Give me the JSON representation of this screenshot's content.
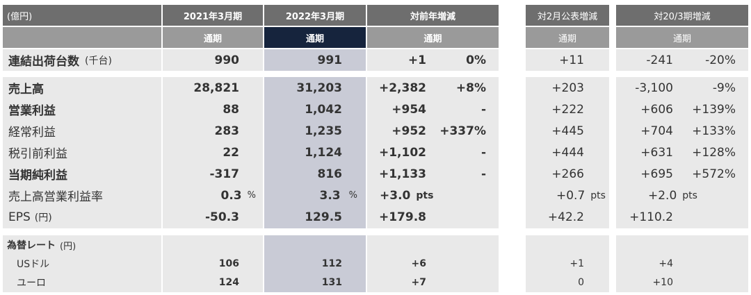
{
  "header": {
    "unit": "(億円)",
    "col_fy2021": "2021年3月期",
    "col_fy2022": "2022年3月期",
    "col_yoy": "対前年増減",
    "col_vs_feb": "対2月公表増減",
    "col_vs_20": "対20/3期増減",
    "sub": "通期"
  },
  "shipments": {
    "label": "連結出荷台数",
    "unit": "(千台)",
    "fy2021": "990",
    "fy2022": "991",
    "yoy": "+1",
    "yoy_pct": "0%",
    "vs_feb": "+11",
    "vs_20": "-241",
    "vs_20_pct": "-20%"
  },
  "rows": [
    {
      "label": "売上高",
      "fy2021": "28,821",
      "fy2022": "31,203",
      "yoy": "+2,382",
      "yoy_pct": "+8%",
      "vs_feb": "+203",
      "vs_20": "-3,100",
      "vs_20_pct": "-9%"
    },
    {
      "label": "営業利益",
      "fy2021": "88",
      "fy2022": "1,042",
      "yoy": "+954",
      "yoy_pct": "-",
      "vs_feb": "+222",
      "vs_20": "+606",
      "vs_20_pct": "+139%"
    },
    {
      "label": "経常利益",
      "fy2021": "283",
      "fy2022": "1,235",
      "yoy": "+952",
      "yoy_pct": "+337%",
      "vs_feb": "+445",
      "vs_20": "+704",
      "vs_20_pct": "+133%"
    },
    {
      "label": "税引前利益",
      "fy2021": "22",
      "fy2022": "1,124",
      "yoy": "+1,102",
      "yoy_pct": "-",
      "vs_feb": "+444",
      "vs_20": "+631",
      "vs_20_pct": "+128%"
    },
    {
      "label": "当期純利益",
      "fy2021": "-317",
      "fy2022": "816",
      "yoy": "+1,133",
      "yoy_pct": "-",
      "vs_feb": "+266",
      "vs_20": "+695",
      "vs_20_pct": "+572%"
    }
  ],
  "margin": {
    "label": "売上高営業利益率",
    "fy2021": "0.3",
    "fy2022": "3.3",
    "pct": "%",
    "yoy": "+3.0",
    "vs_feb": "+0.7",
    "vs_20": "+2.0",
    "pts": "pts"
  },
  "eps": {
    "label": "EPS",
    "unit": "(円)",
    "fy2021": "-50.3",
    "fy2022": "129.5",
    "yoy": "+179.8",
    "vs_feb": "+42.2",
    "vs_20": "+110.2"
  },
  "fx": {
    "title": "為替レート",
    "unit": "(円)",
    "usd": {
      "label": "USドル",
      "fy2021": "106",
      "fy2022": "112",
      "yoy": "+6",
      "vs_feb": "+1",
      "vs_20": "+4"
    },
    "eur": {
      "label": "ユーロ",
      "fy2021": "124",
      "fy2022": "131",
      "yoy": "+7",
      "vs_feb": "0",
      "vs_20": "+10"
    }
  }
}
